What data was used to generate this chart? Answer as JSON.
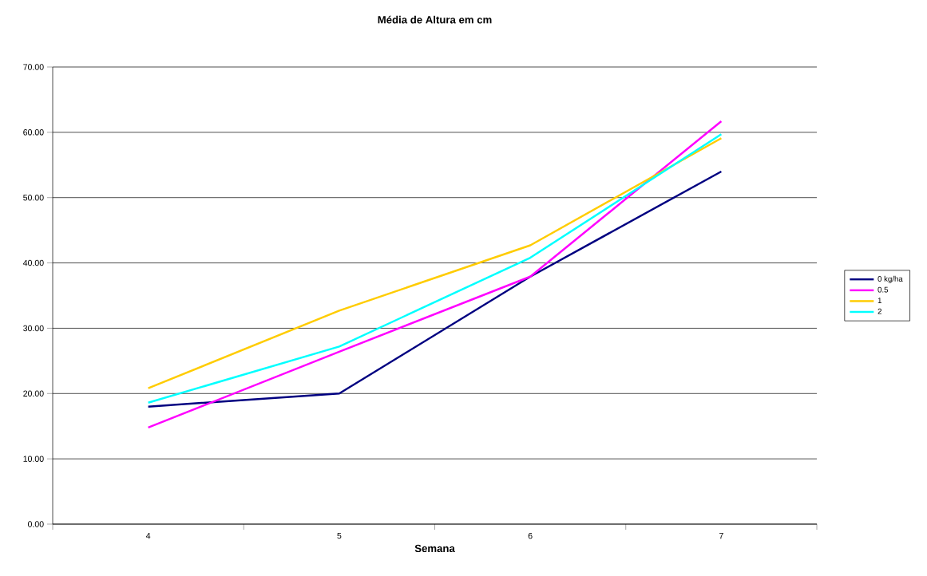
{
  "chart_data": {
    "type": "line",
    "title": "Média de Altura em cm",
    "xlabel": "Semana",
    "categories": [
      "4",
      "5",
      "6",
      "7"
    ],
    "series": [
      {
        "name": "0 kg/ha",
        "color": "#000080",
        "values": [
          18.0,
          20.0,
          37.9,
          54.0
        ]
      },
      {
        "name": "0.5",
        "color": "#ff00ff",
        "values": [
          14.8,
          26.4,
          37.9,
          61.7
        ]
      },
      {
        "name": "1",
        "color": "#ffcc00",
        "values": [
          20.8,
          32.7,
          42.7,
          59.1
        ]
      },
      {
        "name": "2",
        "color": "#00ffff",
        "values": [
          18.6,
          27.2,
          40.8,
          59.7
        ]
      }
    ],
    "ylim": [
      0,
      70
    ],
    "yticks": [
      {
        "value": 0,
        "label": "0.00"
      },
      {
        "value": 10,
        "label": "10.00"
      },
      {
        "value": 20,
        "label": "20.00"
      },
      {
        "value": 30,
        "label": "30.00"
      },
      {
        "value": 40,
        "label": "40.00"
      },
      {
        "value": 50,
        "label": "50.00"
      },
      {
        "value": 60,
        "label": "60.00"
      },
      {
        "value": 70,
        "label": "70.00"
      }
    ],
    "grid": "y",
    "legend": "right",
    "marker": "none",
    "line_style": "solid"
  }
}
